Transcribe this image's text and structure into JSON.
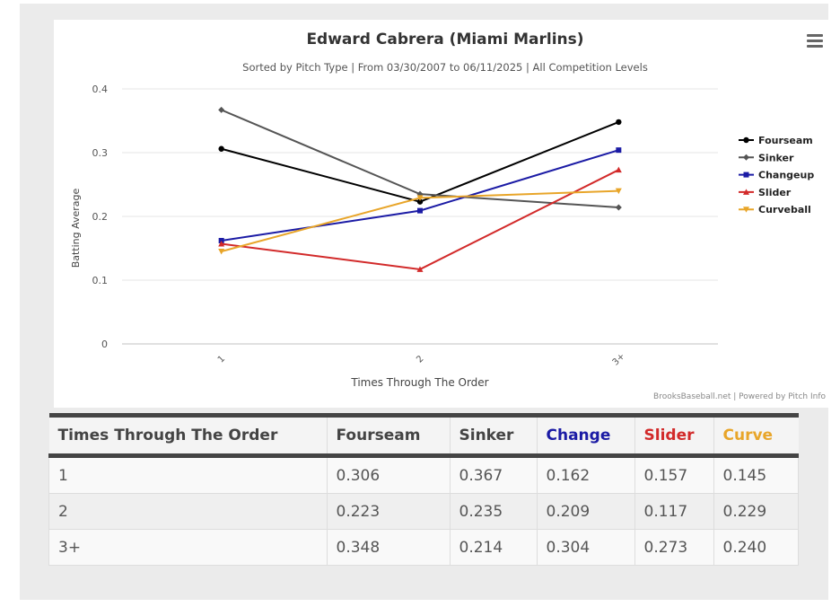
{
  "chart_data": {
    "type": "line",
    "title": "Edward Cabrera (Miami Marlins)",
    "subtitle": "Sorted by Pitch Type | From 03/30/2007 to 06/11/2025 | All Competition Levels",
    "xlabel": "Times Through The Order",
    "ylabel": "Batting Average",
    "categories": [
      "1",
      "2",
      "3+"
    ],
    "ylim": [
      0,
      0.4
    ],
    "yticks": [
      "0",
      "0.1",
      "0.2",
      "0.3",
      "0.4"
    ],
    "grid": true,
    "legend_position": "right",
    "series": [
      {
        "name": "Fourseam",
        "color": "#000000",
        "marker": "circle",
        "values": [
          0.306,
          0.223,
          0.348
        ]
      },
      {
        "name": "Sinker",
        "color": "#555555",
        "marker": "diamond",
        "values": [
          0.367,
          0.235,
          0.214
        ]
      },
      {
        "name": "Changeup",
        "color": "#1b1ba5",
        "marker": "square",
        "values": [
          0.162,
          0.209,
          0.304
        ]
      },
      {
        "name": "Slider",
        "color": "#d22a2a",
        "marker": "triangle",
        "values": [
          0.157,
          0.117,
          0.273
        ]
      },
      {
        "name": "Curveball",
        "color": "#e8a529",
        "marker": "triangle-down",
        "values": [
          0.145,
          0.229,
          0.24
        ]
      }
    ]
  },
  "credits": "BrooksBaseball.net | Powered by Pitch Info",
  "table": {
    "headers": [
      "Times Through The Order",
      "Fourseam",
      "Sinker",
      "Change",
      "Slider",
      "Curve"
    ],
    "rows": [
      [
        "1",
        "0.306",
        "0.367",
        "0.162",
        "0.157",
        "0.145"
      ],
      [
        "2",
        "0.223",
        "0.235",
        "0.209",
        "0.117",
        "0.229"
      ],
      [
        "3+",
        "0.348",
        "0.214",
        "0.304",
        "0.273",
        "0.240"
      ]
    ]
  },
  "icons": {
    "menu": "hamburger-menu-icon"
  }
}
